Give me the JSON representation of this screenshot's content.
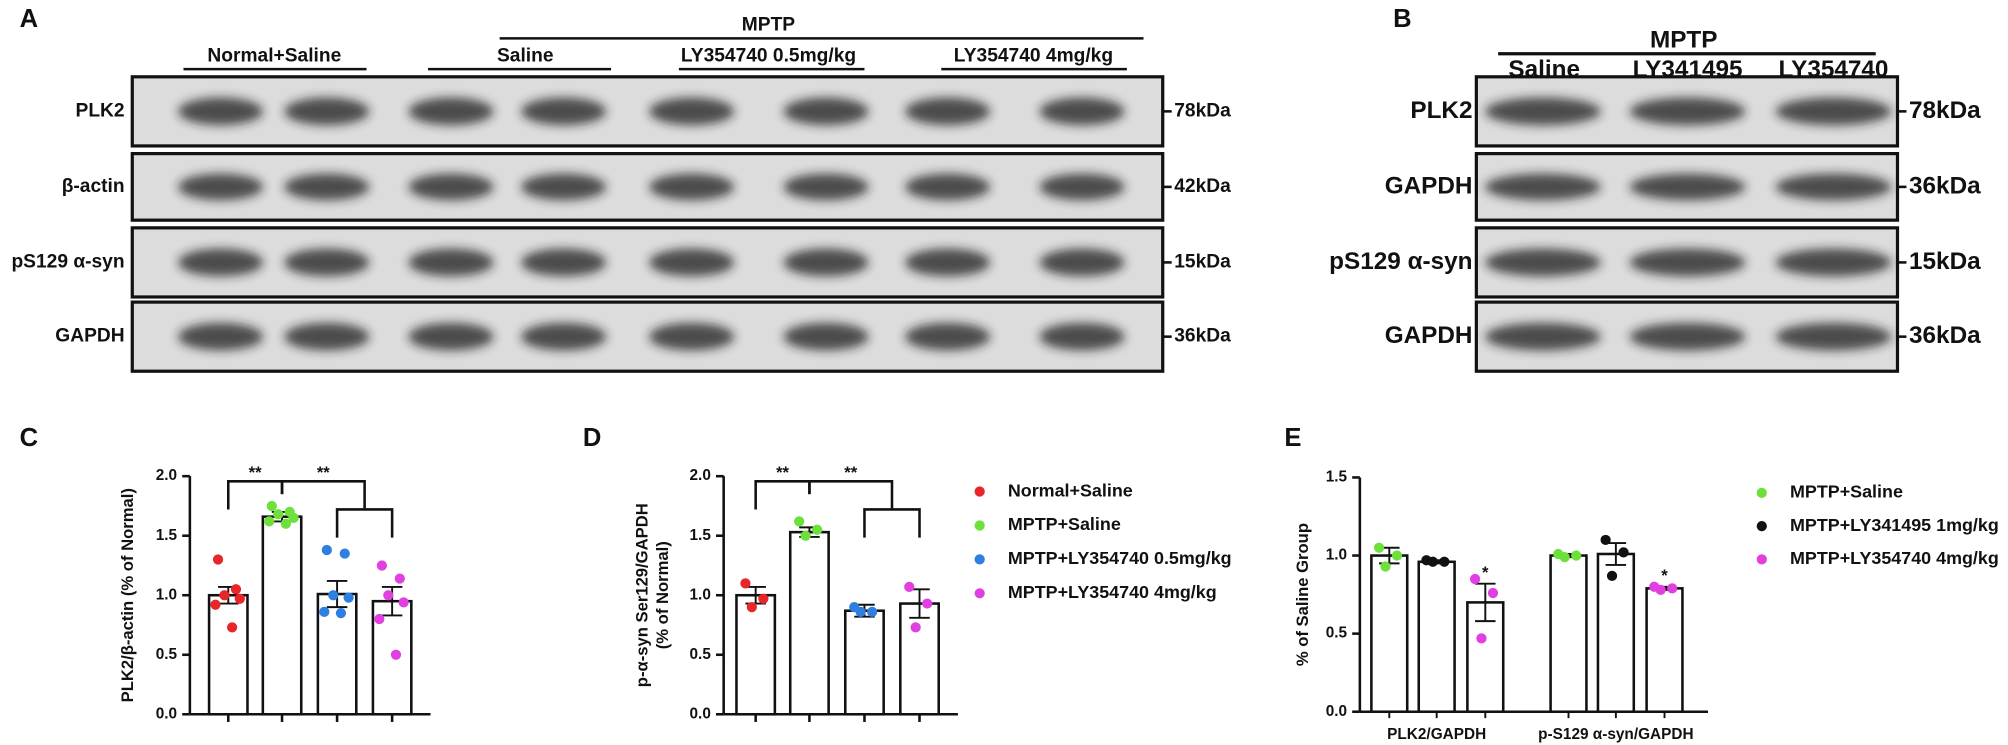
{
  "blot_a": {
    "panel": "A",
    "header": "MPTP",
    "groups": [
      "Normal+Saline",
      "Saline",
      "LY354740 0.5mg/kg",
      "LY354740 4mg/kg"
    ],
    "rows": [
      {
        "label": "PLK2",
        "kda": "78kDa"
      },
      {
        "label": "β-actin",
        "kda": "42kDa"
      },
      {
        "label": "pS129 α-syn",
        "kda": "15kDa"
      },
      {
        "label": "GAPDH",
        "kda": "36kDa"
      }
    ]
  },
  "blot_b": {
    "panel": "B",
    "header": "MPTP",
    "lanes": [
      "Saline",
      "LY341495",
      "LY354740"
    ],
    "rows": [
      {
        "label": "PLK2",
        "kda": "78kDa"
      },
      {
        "label": "GAPDH",
        "kda": "36kDa"
      },
      {
        "label": "pS129 α-syn",
        "kda": "15kDa"
      },
      {
        "label": "GAPDH",
        "kda": "36kDa"
      }
    ]
  },
  "chart_data": [
    {
      "type": "bar",
      "panel": "C",
      "ylabel": [
        "PLK2/β-actin  (% of Normal)"
      ],
      "ylim": [
        0,
        2
      ],
      "yticks": [
        {
          "value": 0,
          "label": "0.0"
        },
        {
          "value": 0.5,
          "label": "0.5"
        },
        {
          "value": 1,
          "label": "1.0"
        },
        {
          "value": 1.5,
          "label": "1.5"
        },
        {
          "value": 2,
          "label": "2.0"
        }
      ],
      "categories": [
        null,
        null,
        null,
        null
      ],
      "values": [
        1.0,
        1.66,
        1.01,
        0.95
      ],
      "errors": [
        0.07,
        0.04,
        0.11,
        0.12
      ],
      "points": [
        [
          1.3,
          1.05,
          1.0,
          0.97,
          0.92,
          0.73
        ],
        [
          1.75,
          1.7,
          1.68,
          1.65,
          1.62,
          1.6
        ],
        [
          1.38,
          1.35,
          1.0,
          0.98,
          0.86,
          0.85
        ],
        [
          1.25,
          1.14,
          1.0,
          0.94,
          0.8,
          0.5
        ]
      ],
      "colors": [
        "#e8262a",
        "#6ee03c",
        "#2f7fe0",
        "#e040e0"
      ],
      "annotations": [
        "**",
        "**"
      ]
    },
    {
      "type": "bar",
      "panel": "D",
      "ylabel": [
        "p-α-syn Ser129/GAPDH",
        "(% of Normal)"
      ],
      "ylim": [
        0,
        2
      ],
      "yticks": [
        {
          "value": 0,
          "label": "0.0"
        },
        {
          "value": 0.5,
          "label": "0.5"
        },
        {
          "value": 1,
          "label": "1.0"
        },
        {
          "value": 1.5,
          "label": "1.5"
        },
        {
          "value": 2,
          "label": "2.0"
        }
      ],
      "categories": [
        null,
        null,
        null,
        null
      ],
      "values": [
        1.0,
        1.53,
        0.87,
        0.93
      ],
      "errors": [
        0.07,
        0.04,
        0.05,
        0.12
      ],
      "points": [
        [
          1.1,
          0.97,
          0.9
        ],
        [
          1.62,
          1.55,
          1.5
        ],
        [
          0.9,
          0.86,
          0.86
        ],
        [
          1.07,
          0.93,
          0.73
        ]
      ],
      "colors": [
        "#e8262a",
        "#6ee03c",
        "#2f7fe0",
        "#e040e0"
      ],
      "legend": [
        "Normal+Saline",
        "MPTP+Saline",
        "MPTP+LY354740 0.5mg/kg",
        "MPTP+LY354740 4mg/kg"
      ],
      "annotations": [
        "**",
        "**"
      ]
    },
    {
      "type": "grouped_bar",
      "panel": "E",
      "ylabel": [
        "% of Saline Group"
      ],
      "ylim": [
        0,
        1.5
      ],
      "yticks": [
        {
          "value": 0,
          "label": "0.0"
        },
        {
          "value": 0.5,
          "label": "0.5"
        },
        {
          "value": 1,
          "label": "1.0"
        },
        {
          "value": 1.5,
          "label": "1.5"
        }
      ],
      "categories": [
        "PLK2/GAPDH",
        "p-S129 α-syn/GAPDH"
      ],
      "series": [
        {
          "name": "MPTP+Saline",
          "color": "#6ee03c",
          "values": [
            1.0,
            1.0
          ],
          "errors": [
            0.05,
            0.01
          ],
          "points": [
            [
              1.05,
              1.0,
              0.93
            ],
            [
              1.01,
              1.0,
              0.99
            ]
          ]
        },
        {
          "name": "MPTP+LY341495 1mg/kg",
          "color": "#111111",
          "values": [
            0.96,
            1.01
          ],
          "errors": [
            0.01,
            0.07
          ],
          "points": [
            [
              0.97,
              0.96,
              0.96
            ],
            [
              1.1,
              1.02,
              0.87
            ]
          ]
        },
        {
          "name": "MPTP+LY354740 4mg/kg",
          "color": "#e040e0",
          "values": [
            0.7,
            0.79
          ],
          "errors": [
            0.12,
            0.01
          ],
          "points": [
            [
              0.85,
              0.76,
              0.47
            ],
            [
              0.8,
              0.79,
              0.78
            ]
          ],
          "annotations": [
            "*",
            "*"
          ]
        }
      ]
    }
  ]
}
